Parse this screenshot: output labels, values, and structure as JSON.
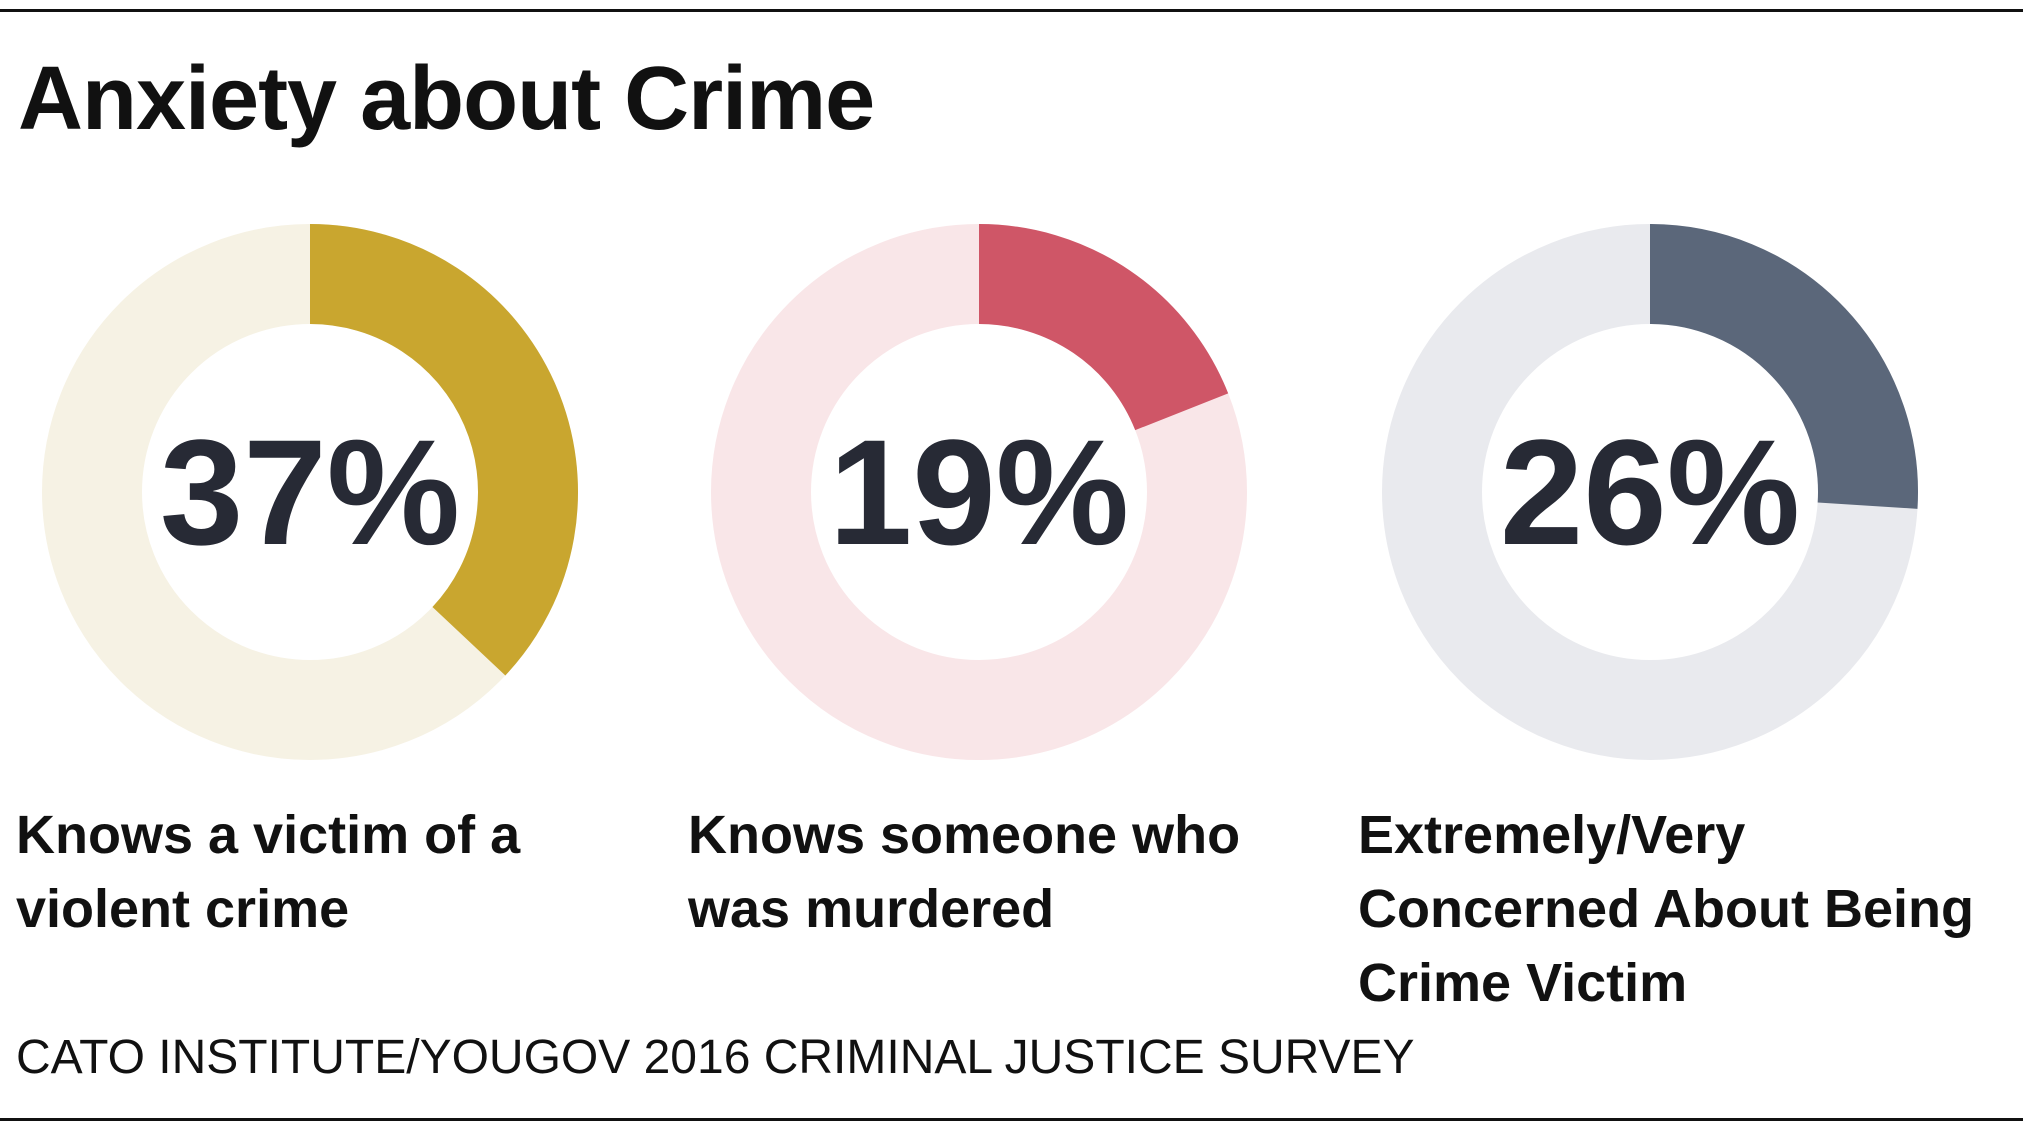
{
  "title": "Anxiety about Crime",
  "source": "CATO INSTITUTE/YOUGOV 2016 CRIMINAL JUSTICE SURVEY",
  "chart_data": [
    {
      "type": "donut",
      "categories": [
        "Knows a victim of a violent crime"
      ],
      "values": [
        37
      ],
      "value_labels": [
        "37%"
      ],
      "ylim": [
        0,
        100
      ],
      "color": "#c9a62f",
      "track_color": "#f6f2e4"
    },
    {
      "type": "donut",
      "categories": [
        "Knows someone who was murdered"
      ],
      "values": [
        19
      ],
      "value_labels": [
        "19%"
      ],
      "ylim": [
        0,
        100
      ],
      "color": "#cf5667",
      "track_color": "#f9e6e8"
    },
    {
      "type": "donut",
      "categories": [
        "Extremely/Very Concerned About Being Crime Victim"
      ],
      "values": [
        26
      ],
      "value_labels": [
        "26%"
      ],
      "ylim": [
        0,
        100
      ],
      "color": "#5b677a",
      "track_color": "#e9eaee"
    }
  ]
}
